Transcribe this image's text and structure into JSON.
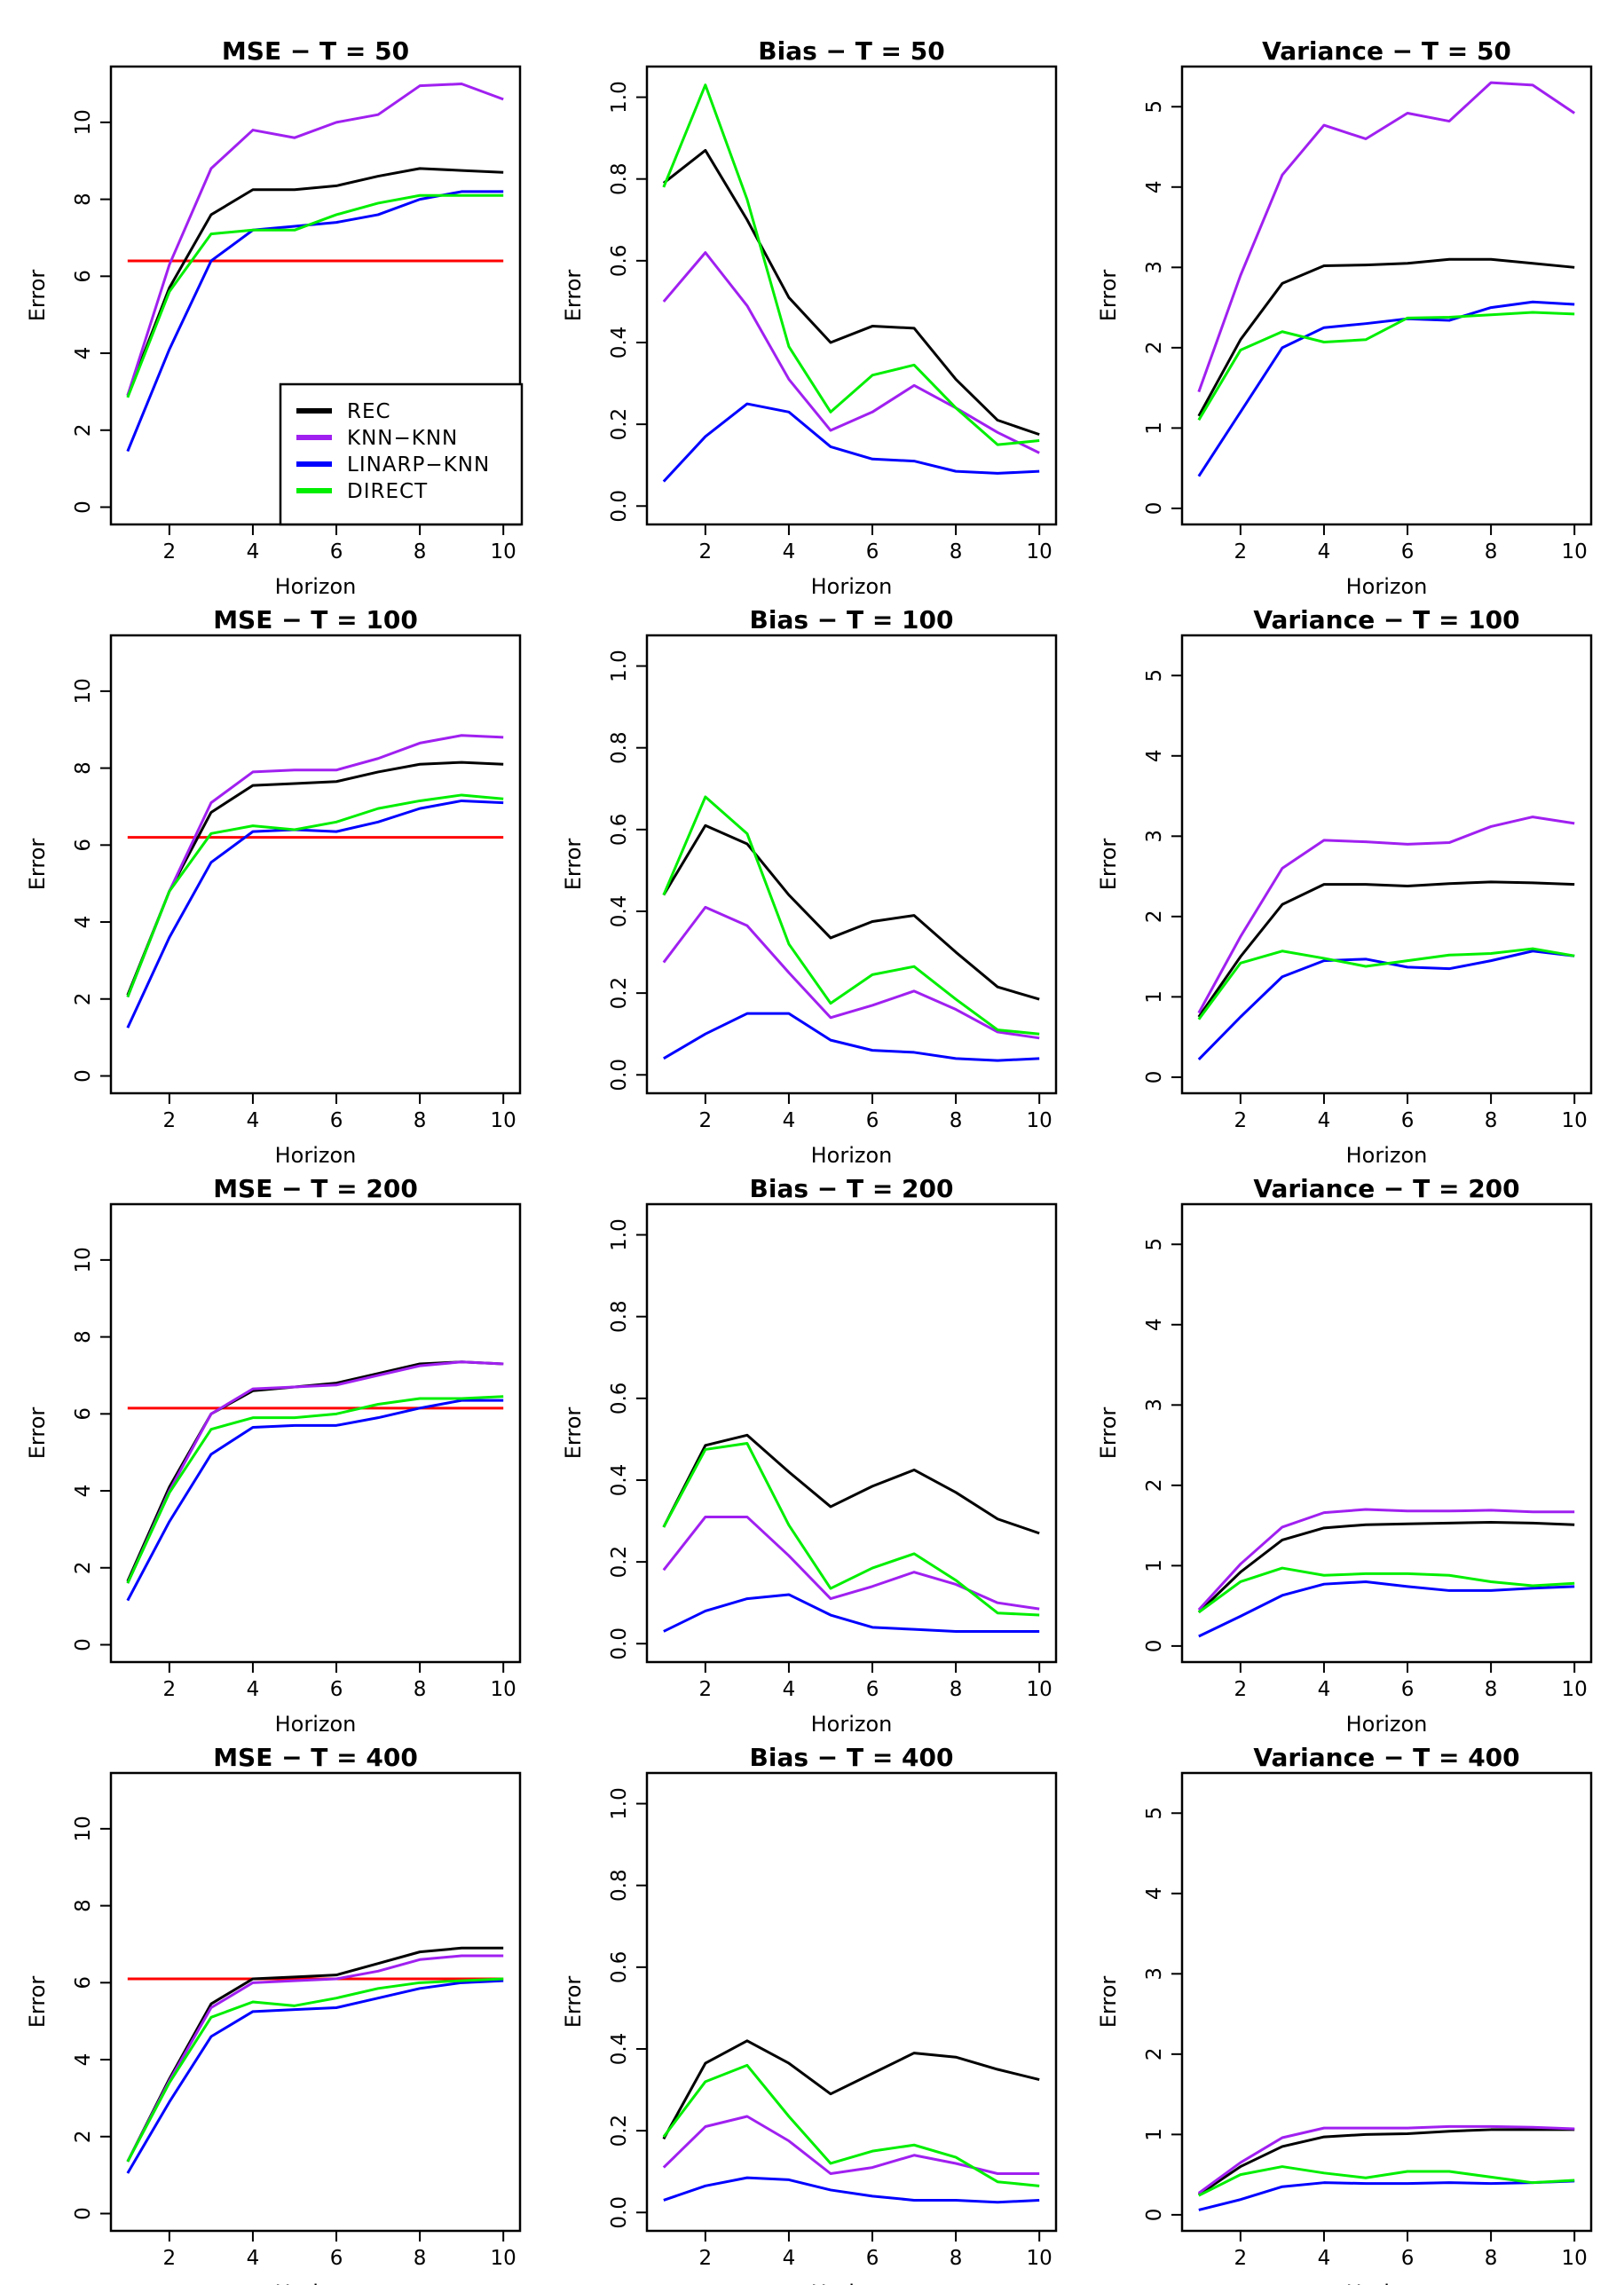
{
  "legend": {
    "position": "bottom-right of first panel",
    "entries": [
      {
        "label": "REC",
        "color": "#000000"
      },
      {
        "label": "KNN−KNN",
        "color": "#a020f0"
      },
      {
        "label": "LINARP−KNN",
        "color": "#0000ff"
      },
      {
        "label": "DIRECT",
        "color": "#00ee00"
      }
    ]
  },
  "reference_color": "#ff0000",
  "chart_data": [
    {
      "type": "line",
      "title": "MSE  − T = 50",
      "xlabel": "Horizon",
      "ylabel": "Error",
      "x": [
        1,
        2,
        3,
        4,
        5,
        6,
        7,
        8,
        9,
        10
      ],
      "xticks": [
        2,
        4,
        6,
        8,
        10
      ],
      "yticks": [
        "0",
        "2",
        "4",
        "6",
        "8",
        "10"
      ],
      "ylim": [
        -0.45,
        11.45
      ],
      "grid": false,
      "legend": true,
      "series": [
        {
          "name": "REC",
          "values": [
            2.9,
            5.7,
            7.6,
            8.25,
            8.25,
            8.35,
            8.6,
            8.8,
            8.75,
            8.7
          ]
        },
        {
          "name": "KNN−KNN",
          "values": [
            2.9,
            6.3,
            8.8,
            9.8,
            9.6,
            10.0,
            10.2,
            10.95,
            11.0,
            10.6
          ]
        },
        {
          "name": "LINARP−KNN",
          "values": [
            1.45,
            4.1,
            6.4,
            7.2,
            7.3,
            7.4,
            7.6,
            8.0,
            8.2,
            8.2
          ]
        },
        {
          "name": "DIRECT",
          "values": [
            2.85,
            5.6,
            7.1,
            7.2,
            7.2,
            7.6,
            7.9,
            8.1,
            8.1,
            8.1
          ]
        }
      ],
      "reference": 6.4
    },
    {
      "type": "line",
      "title": "Bias  − T = 50",
      "xlabel": "Horizon",
      "ylabel": "Error",
      "x": [
        1,
        2,
        3,
        4,
        5,
        6,
        7,
        8,
        9,
        10
      ],
      "xticks": [
        2,
        4,
        6,
        8,
        10
      ],
      "yticks": [
        "0.0",
        "0.2",
        "0.4",
        "0.6",
        "0.8",
        "1.0"
      ],
      "ylim": [
        -0.045,
        1.075
      ],
      "grid": false,
      "series": [
        {
          "name": "REC",
          "values": [
            0.79,
            0.87,
            0.7,
            0.51,
            0.4,
            0.44,
            0.435,
            0.31,
            0.21,
            0.175
          ]
        },
        {
          "name": "KNN−KNN",
          "values": [
            0.5,
            0.62,
            0.49,
            0.31,
            0.185,
            0.23,
            0.295,
            0.24,
            0.18,
            0.13
          ]
        },
        {
          "name": "LINARP−KNN",
          "values": [
            0.06,
            0.17,
            0.25,
            0.23,
            0.145,
            0.115,
            0.11,
            0.085,
            0.08,
            0.085
          ]
        },
        {
          "name": "DIRECT",
          "values": [
            0.78,
            1.03,
            0.75,
            0.39,
            0.23,
            0.32,
            0.345,
            0.24,
            0.15,
            0.16
          ]
        }
      ]
    },
    {
      "type": "line",
      "title": "Variance  − T = 50",
      "xlabel": "Horizon",
      "ylabel": "Error",
      "x": [
        1,
        2,
        3,
        4,
        5,
        6,
        7,
        8,
        9,
        10
      ],
      "xticks": [
        2,
        4,
        6,
        8,
        10
      ],
      "yticks": [
        "0",
        "1",
        "2",
        "3",
        "4",
        "5"
      ],
      "ylim": [
        -0.2,
        5.5
      ],
      "grid": false,
      "series": [
        {
          "name": "REC",
          "values": [
            1.15,
            2.1,
            2.8,
            3.02,
            3.03,
            3.05,
            3.1,
            3.1,
            3.05,
            3.0
          ]
        },
        {
          "name": "KNN−KNN",
          "values": [
            1.45,
            2.9,
            4.15,
            4.77,
            4.6,
            4.92,
            4.82,
            5.3,
            5.27,
            4.92
          ]
        },
        {
          "name": "LINARP−KNN",
          "values": [
            0.4,
            1.2,
            2.0,
            2.25,
            2.3,
            2.36,
            2.34,
            2.5,
            2.57,
            2.54
          ]
        },
        {
          "name": "DIRECT",
          "values": [
            1.1,
            1.97,
            2.2,
            2.07,
            2.1,
            2.37,
            2.38,
            2.41,
            2.44,
            2.42
          ]
        }
      ]
    },
    {
      "type": "line",
      "title": "MSE  − T = 100",
      "xlabel": "Horizon",
      "ylabel": "Error",
      "x": [
        1,
        2,
        3,
        4,
        5,
        6,
        7,
        8,
        9,
        10
      ],
      "xticks": [
        2,
        4,
        6,
        8,
        10
      ],
      "yticks": [
        "0",
        "2",
        "4",
        "6",
        "8",
        "10"
      ],
      "ylim": [
        -0.45,
        11.45
      ],
      "grid": false,
      "series": [
        {
          "name": "REC",
          "values": [
            2.1,
            4.8,
            6.85,
            7.55,
            7.6,
            7.65,
            7.9,
            8.1,
            8.15,
            8.1
          ]
        },
        {
          "name": "KNN−KNN",
          "values": [
            2.05,
            4.8,
            7.1,
            7.9,
            7.95,
            7.95,
            8.25,
            8.65,
            8.85,
            8.8
          ]
        },
        {
          "name": "LINARP−KNN",
          "values": [
            1.25,
            3.6,
            5.55,
            6.35,
            6.4,
            6.35,
            6.6,
            6.95,
            7.15,
            7.1
          ]
        },
        {
          "name": "DIRECT",
          "values": [
            2.05,
            4.8,
            6.3,
            6.5,
            6.4,
            6.6,
            6.95,
            7.15,
            7.3,
            7.2
          ]
        }
      ],
      "reference": 6.2
    },
    {
      "type": "line",
      "title": "Bias  − T = 100",
      "xlabel": "Horizon",
      "ylabel": "Error",
      "x": [
        1,
        2,
        3,
        4,
        5,
        6,
        7,
        8,
        9,
        10
      ],
      "xticks": [
        2,
        4,
        6,
        8,
        10
      ],
      "yticks": [
        "0.0",
        "0.2",
        "0.4",
        "0.6",
        "0.8",
        "1.0"
      ],
      "ylim": [
        -0.045,
        1.075
      ],
      "grid": false,
      "series": [
        {
          "name": "REC",
          "values": [
            0.44,
            0.61,
            0.565,
            0.44,
            0.335,
            0.375,
            0.39,
            0.3,
            0.215,
            0.185
          ]
        },
        {
          "name": "KNN−KNN",
          "values": [
            0.275,
            0.41,
            0.365,
            0.25,
            0.14,
            0.17,
            0.205,
            0.16,
            0.105,
            0.09
          ]
        },
        {
          "name": "LINARP−KNN",
          "values": [
            0.04,
            0.1,
            0.15,
            0.15,
            0.085,
            0.06,
            0.055,
            0.04,
            0.035,
            0.04
          ]
        },
        {
          "name": "DIRECT",
          "values": [
            0.44,
            0.68,
            0.59,
            0.32,
            0.175,
            0.245,
            0.265,
            0.185,
            0.11,
            0.1
          ]
        }
      ]
    },
    {
      "type": "line",
      "title": "Variance  − T = 100",
      "xlabel": "Horizon",
      "ylabel": "Error",
      "x": [
        1,
        2,
        3,
        4,
        5,
        6,
        7,
        8,
        9,
        10
      ],
      "xticks": [
        2,
        4,
        6,
        8,
        10
      ],
      "yticks": [
        "0",
        "1",
        "2",
        "3",
        "4",
        "5"
      ],
      "ylim": [
        -0.2,
        5.5
      ],
      "grid": false,
      "series": [
        {
          "name": "REC",
          "values": [
            0.75,
            1.5,
            2.15,
            2.4,
            2.4,
            2.38,
            2.41,
            2.43,
            2.42,
            2.4
          ]
        },
        {
          "name": "KNN−KNN",
          "values": [
            0.8,
            1.75,
            2.6,
            2.95,
            2.93,
            2.9,
            2.92,
            3.12,
            3.24,
            3.16
          ]
        },
        {
          "name": "LINARP−KNN",
          "values": [
            0.22,
            0.75,
            1.25,
            1.45,
            1.47,
            1.37,
            1.35,
            1.45,
            1.57,
            1.51
          ]
        },
        {
          "name": "DIRECT",
          "values": [
            0.72,
            1.42,
            1.57,
            1.48,
            1.38,
            1.45,
            1.52,
            1.54,
            1.6,
            1.51
          ]
        }
      ]
    },
    {
      "type": "line",
      "title": "MSE  − T = 200",
      "xlabel": "Horizon",
      "ylabel": "Error",
      "x": [
        1,
        2,
        3,
        4,
        5,
        6,
        7,
        8,
        9,
        10
      ],
      "xticks": [
        2,
        4,
        6,
        8,
        10
      ],
      "yticks": [
        "0",
        "2",
        "4",
        "6",
        "8",
        "10"
      ],
      "ylim": [
        -0.45,
        11.45
      ],
      "grid": false,
      "series": [
        {
          "name": "REC",
          "values": [
            1.65,
            4.1,
            6.0,
            6.6,
            6.7,
            6.8,
            7.05,
            7.3,
            7.35,
            7.3
          ]
        },
        {
          "name": "KNN−KNN",
          "values": [
            1.6,
            4.0,
            6.0,
            6.65,
            6.7,
            6.75,
            7.0,
            7.25,
            7.35,
            7.3
          ]
        },
        {
          "name": "LINARP−KNN",
          "values": [
            1.15,
            3.2,
            4.95,
            5.65,
            5.7,
            5.7,
            5.9,
            6.15,
            6.35,
            6.35
          ]
        },
        {
          "name": "DIRECT",
          "values": [
            1.6,
            3.95,
            5.6,
            5.9,
            5.9,
            6.0,
            6.25,
            6.4,
            6.4,
            6.45
          ]
        }
      ],
      "reference": 6.15
    },
    {
      "type": "line",
      "title": "Bias  − T = 200",
      "xlabel": "Horizon",
      "ylabel": "Error",
      "x": [
        1,
        2,
        3,
        4,
        5,
        6,
        7,
        8,
        9,
        10
      ],
      "xticks": [
        2,
        4,
        6,
        8,
        10
      ],
      "yticks": [
        "0.0",
        "0.2",
        "0.4",
        "0.6",
        "0.8",
        "1.0"
      ],
      "ylim": [
        -0.045,
        1.075
      ],
      "grid": false,
      "series": [
        {
          "name": "REC",
          "values": [
            0.285,
            0.485,
            0.51,
            0.42,
            0.335,
            0.385,
            0.425,
            0.37,
            0.305,
            0.27
          ]
        },
        {
          "name": "KNN−KNN",
          "values": [
            0.18,
            0.31,
            0.31,
            0.215,
            0.11,
            0.14,
            0.175,
            0.145,
            0.1,
            0.085
          ]
        },
        {
          "name": "LINARP−KNN",
          "values": [
            0.03,
            0.08,
            0.11,
            0.12,
            0.07,
            0.04,
            0.035,
            0.03,
            0.03,
            0.03
          ]
        },
        {
          "name": "DIRECT",
          "values": [
            0.285,
            0.475,
            0.49,
            0.29,
            0.135,
            0.185,
            0.22,
            0.155,
            0.075,
            0.07
          ]
        }
      ]
    },
    {
      "type": "line",
      "title": "Variance  − T = 200",
      "xlabel": "Horizon",
      "ylabel": "Error",
      "x": [
        1,
        2,
        3,
        4,
        5,
        6,
        7,
        8,
        9,
        10
      ],
      "xticks": [
        2,
        4,
        6,
        8,
        10
      ],
      "yticks": [
        "0",
        "1",
        "2",
        "3",
        "4",
        "5"
      ],
      "ylim": [
        -0.2,
        5.5
      ],
      "grid": false,
      "series": [
        {
          "name": "REC",
          "values": [
            0.42,
            0.92,
            1.32,
            1.47,
            1.51,
            1.52,
            1.53,
            1.54,
            1.53,
            1.51
          ]
        },
        {
          "name": "KNN−KNN",
          "values": [
            0.45,
            1.02,
            1.48,
            1.66,
            1.7,
            1.68,
            1.68,
            1.69,
            1.67,
            1.67
          ]
        },
        {
          "name": "LINARP−KNN",
          "values": [
            0.12,
            0.37,
            0.63,
            0.77,
            0.8,
            0.74,
            0.69,
            0.69,
            0.72,
            0.74
          ]
        },
        {
          "name": "DIRECT",
          "values": [
            0.42,
            0.8,
            0.97,
            0.88,
            0.9,
            0.9,
            0.88,
            0.8,
            0.75,
            0.78
          ]
        }
      ]
    },
    {
      "type": "line",
      "title": "MSE  − T = 400",
      "xlabel": "Horizon",
      "ylabel": "Error",
      "x": [
        1,
        2,
        3,
        4,
        5,
        6,
        7,
        8,
        9,
        10
      ],
      "xticks": [
        2,
        4,
        6,
        8,
        10
      ],
      "yticks": [
        "0",
        "2",
        "4",
        "6",
        "8",
        "10"
      ],
      "ylim": [
        -0.45,
        11.45
      ],
      "grid": false,
      "series": [
        {
          "name": "REC",
          "values": [
            1.35,
            3.5,
            5.45,
            6.1,
            6.15,
            6.2,
            6.5,
            6.8,
            6.9,
            6.9
          ]
        },
        {
          "name": "KNN−KNN",
          "values": [
            1.35,
            3.45,
            5.35,
            6.0,
            6.05,
            6.1,
            6.3,
            6.6,
            6.7,
            6.7
          ]
        },
        {
          "name": "LINARP−KNN",
          "values": [
            1.05,
            2.9,
            4.6,
            5.25,
            5.3,
            5.35,
            5.6,
            5.85,
            6.0,
            6.05
          ]
        },
        {
          "name": "DIRECT",
          "values": [
            1.35,
            3.4,
            5.1,
            5.5,
            5.4,
            5.6,
            5.85,
            6.0,
            6.05,
            6.1
          ]
        }
      ],
      "reference": 6.1
    },
    {
      "type": "line",
      "title": "Bias  − T = 400",
      "xlabel": "Horizon",
      "ylabel": "Error",
      "x": [
        1,
        2,
        3,
        4,
        5,
        6,
        7,
        8,
        9,
        10
      ],
      "xticks": [
        2,
        4,
        6,
        8,
        10
      ],
      "yticks": [
        "0.0",
        "0.2",
        "0.4",
        "0.6",
        "0.8",
        "1.0"
      ],
      "ylim": [
        -0.045,
        1.075
      ],
      "grid": false,
      "series": [
        {
          "name": "REC",
          "values": [
            0.18,
            0.365,
            0.42,
            0.365,
            0.29,
            0.34,
            0.39,
            0.38,
            0.35,
            0.325
          ]
        },
        {
          "name": "KNN−KNN",
          "values": [
            0.11,
            0.21,
            0.235,
            0.175,
            0.095,
            0.11,
            0.14,
            0.12,
            0.095,
            0.095
          ]
        },
        {
          "name": "LINARP−KNN",
          "values": [
            0.03,
            0.065,
            0.085,
            0.08,
            0.055,
            0.04,
            0.03,
            0.03,
            0.025,
            0.03
          ]
        },
        {
          "name": "DIRECT",
          "values": [
            0.185,
            0.32,
            0.36,
            0.235,
            0.12,
            0.15,
            0.165,
            0.135,
            0.075,
            0.065
          ]
        }
      ]
    },
    {
      "type": "line",
      "title": "Variance  − T = 400",
      "xlabel": "Horizon",
      "ylabel": "Error",
      "x": [
        1,
        2,
        3,
        4,
        5,
        6,
        7,
        8,
        9,
        10
      ],
      "xticks": [
        2,
        4,
        6,
        8,
        10
      ],
      "yticks": [
        "0",
        "1",
        "2",
        "3",
        "4",
        "5"
      ],
      "ylim": [
        -0.2,
        5.5
      ],
      "grid": false,
      "series": [
        {
          "name": "REC",
          "values": [
            0.25,
            0.6,
            0.85,
            0.97,
            1.0,
            1.01,
            1.04,
            1.06,
            1.06,
            1.06
          ]
        },
        {
          "name": "KNN−KNN",
          "values": [
            0.27,
            0.65,
            0.96,
            1.08,
            1.08,
            1.08,
            1.1,
            1.1,
            1.09,
            1.07
          ]
        },
        {
          "name": "LINARP−KNN",
          "values": [
            0.06,
            0.19,
            0.35,
            0.4,
            0.39,
            0.39,
            0.4,
            0.39,
            0.4,
            0.42
          ]
        },
        {
          "name": "DIRECT",
          "values": [
            0.24,
            0.5,
            0.6,
            0.52,
            0.46,
            0.54,
            0.54,
            0.47,
            0.4,
            0.43
          ]
        }
      ]
    }
  ]
}
